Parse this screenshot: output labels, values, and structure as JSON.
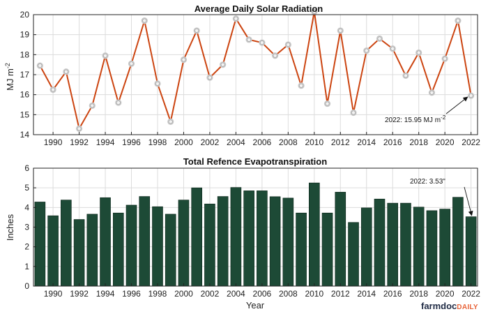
{
  "chart_data": [
    {
      "type": "line",
      "title": "Average Daily Solar Radiation",
      "ylabel": "MJ m",
      "ylabel_sup": "-2",
      "ylim": [
        14,
        20
      ],
      "yticks": [
        14,
        15,
        16,
        17,
        18,
        19,
        20
      ],
      "xlim": [
        1988.5,
        2022.5
      ],
      "xticks": [
        1990,
        1992,
        1994,
        1996,
        1998,
        2000,
        2002,
        2004,
        2006,
        2008,
        2010,
        2012,
        2014,
        2016,
        2018,
        2020,
        2022
      ],
      "x": [
        1989,
        1990,
        1991,
        1992,
        1993,
        1994,
        1995,
        1996,
        1997,
        1998,
        1999,
        2000,
        2001,
        2002,
        2003,
        2004,
        2005,
        2006,
        2007,
        2008,
        2009,
        2010,
        2011,
        2012,
        2013,
        2014,
        2015,
        2016,
        2017,
        2018,
        2019,
        2020,
        2021,
        2022
      ],
      "series": [
        {
          "values": [
            17.45,
            16.25,
            17.15,
            14.3,
            15.45,
            17.95,
            15.6,
            17.55,
            19.7,
            16.55,
            14.65,
            17.75,
            19.2,
            16.85,
            17.5,
            19.8,
            18.75,
            18.6,
            17.95,
            18.5,
            16.45,
            20.15,
            15.55,
            19.2,
            15.1,
            18.2,
            18.8,
            18.3,
            16.95,
            18.1,
            16.1,
            17.8,
            19.7,
            15.95
          ],
          "color": "#cc4410"
        }
      ],
      "annotation": {
        "text": "2022: 15.95 MJ m",
        "sup": "-2",
        "x": 2022,
        "y": 15.95
      },
      "grid": true
    },
    {
      "type": "bar",
      "title": "Total Refence Evapotranspiration",
      "xlabel": "Year",
      "ylabel": "Inches",
      "ylim": [
        0,
        6
      ],
      "yticks": [
        0,
        1,
        2,
        3,
        4,
        5,
        6
      ],
      "xlim": [
        1988.5,
        2022.5
      ],
      "xticks": [
        1990,
        1992,
        1994,
        1996,
        1998,
        2000,
        2002,
        2004,
        2006,
        2008,
        2010,
        2012,
        2014,
        2016,
        2018,
        2020,
        2022
      ],
      "x": [
        1989,
        1990,
        1991,
        1992,
        1993,
        1994,
        1995,
        1996,
        1997,
        1998,
        1999,
        2000,
        2001,
        2002,
        2003,
        2004,
        2005,
        2006,
        2007,
        2008,
        2009,
        2010,
        2011,
        2012,
        2013,
        2014,
        2015,
        2016,
        2017,
        2018,
        2019,
        2020,
        2021,
        2022
      ],
      "series": [
        {
          "values": [
            4.28,
            3.58,
            4.38,
            3.39,
            3.66,
            4.5,
            3.72,
            4.12,
            4.56,
            4.04,
            3.66,
            4.38,
            5.0,
            4.18,
            4.56,
            5.02,
            4.85,
            4.85,
            4.55,
            4.48,
            3.72,
            5.25,
            3.72,
            4.78,
            3.24,
            3.98,
            4.43,
            4.22,
            4.22,
            4.02,
            3.84,
            3.92,
            4.52,
            3.53
          ],
          "color": "#1d4a36"
        }
      ],
      "annotation": {
        "text": "2022: 3.53\"",
        "x": 2022,
        "y": 3.53
      },
      "grid": true
    }
  ],
  "branding": {
    "logo_main": "farmdoc",
    "logo_accent": "DAILY"
  }
}
